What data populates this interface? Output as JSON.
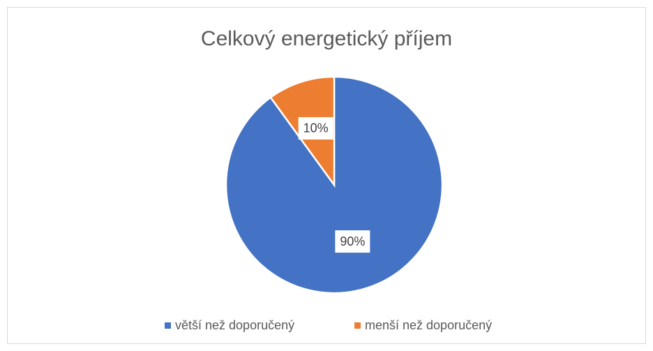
{
  "chart_data": {
    "type": "pie",
    "title": "Celkový energetický příjem",
    "categories": [
      "větší než doporučený",
      "menší než doporučený"
    ],
    "values": [
      90,
      10
    ],
    "value_labels": [
      "90%",
      "10%"
    ],
    "colors": [
      "#4472c4",
      "#ed7d31"
    ],
    "legend": "bottom"
  }
}
